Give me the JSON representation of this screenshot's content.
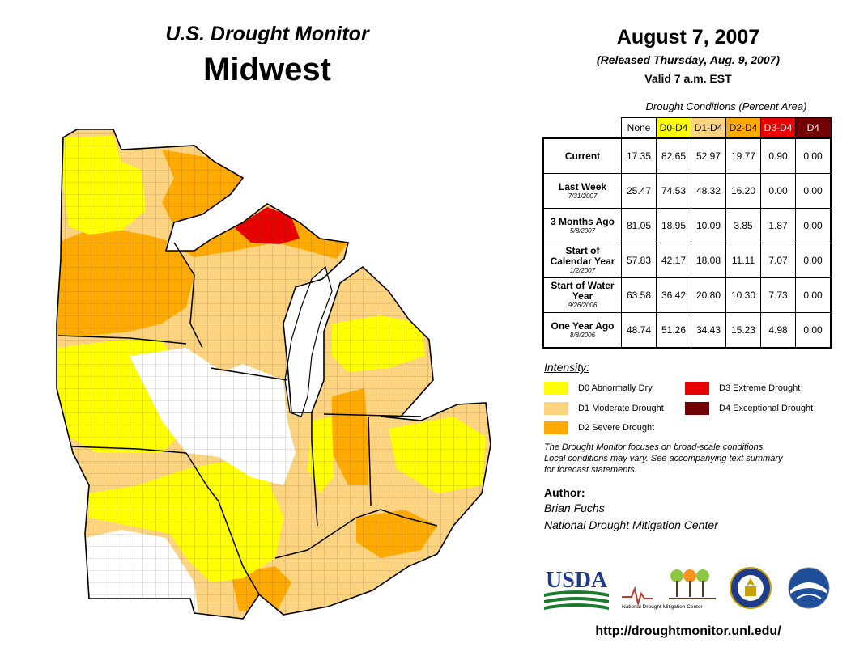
{
  "header": {
    "title_top": "U.S. Drought Monitor",
    "title_main": "Midwest",
    "date": "August 7, 2007",
    "released": "(Released Thursday, Aug. 9, 2007)",
    "valid": "Valid 7 a.m. EST"
  },
  "table": {
    "caption": "Drought Conditions (Percent Area)",
    "columns": [
      "None",
      "D0-D4",
      "D1-D4",
      "D2-D4",
      "D3-D4",
      "D4"
    ],
    "column_colors": [
      "#ffffff",
      "#ffff00",
      "#fcd37f",
      "#ffaa00",
      "#e60000",
      "#730000"
    ],
    "rows": [
      {
        "label": "Current",
        "sub": "",
        "values": [
          "17.35",
          "82.65",
          "52.97",
          "19.77",
          "0.90",
          "0.00"
        ]
      },
      {
        "label": "Last Week",
        "sub": "7/31/2007",
        "values": [
          "25.47",
          "74.53",
          "48.32",
          "16.20",
          "0.00",
          "0.00"
        ]
      },
      {
        "label": "3 Months Ago",
        "sub": "5/8/2007",
        "values": [
          "81.05",
          "18.95",
          "10.09",
          "3.85",
          "1.87",
          "0.00"
        ]
      },
      {
        "label": "Start of Calendar Year",
        "sub": "1/2/2007",
        "values": [
          "57.83",
          "42.17",
          "18.08",
          "11.11",
          "7.07",
          "0.00"
        ]
      },
      {
        "label": "Start of Water Year",
        "sub": "9/26/2006",
        "values": [
          "63.58",
          "36.42",
          "20.80",
          "10.30",
          "7.73",
          "0.00"
        ]
      },
      {
        "label": "One Year Ago",
        "sub": "8/8/2006",
        "values": [
          "48.74",
          "51.26",
          "34.43",
          "15.23",
          "4.98",
          "0.00"
        ]
      }
    ]
  },
  "legend": {
    "title": "Intensity:",
    "items": [
      {
        "label": "D0 Abnormally Dry",
        "color": "#ffff00"
      },
      {
        "label": "D1 Moderate Drought",
        "color": "#fcd37f"
      },
      {
        "label": "D2 Severe Drought",
        "color": "#ffaa00"
      },
      {
        "label": "D3 Extreme Drought",
        "color": "#e60000"
      },
      {
        "label": "D4 Exceptional Drought",
        "color": "#730000"
      }
    ]
  },
  "note": {
    "line1": "The Drought Monitor focuses on broad-scale conditions.",
    "line2": "Local conditions may vary. See accompanying text summary",
    "line3": "for forecast statements."
  },
  "author": {
    "heading": "Author:",
    "name": "Brian Fuchs",
    "org": "National Drought Mitigation Center"
  },
  "logos": {
    "usda": "USDA",
    "ndmc": "National Drought Mitigation Center"
  },
  "url": "http://droughtmonitor.unl.edu/"
}
